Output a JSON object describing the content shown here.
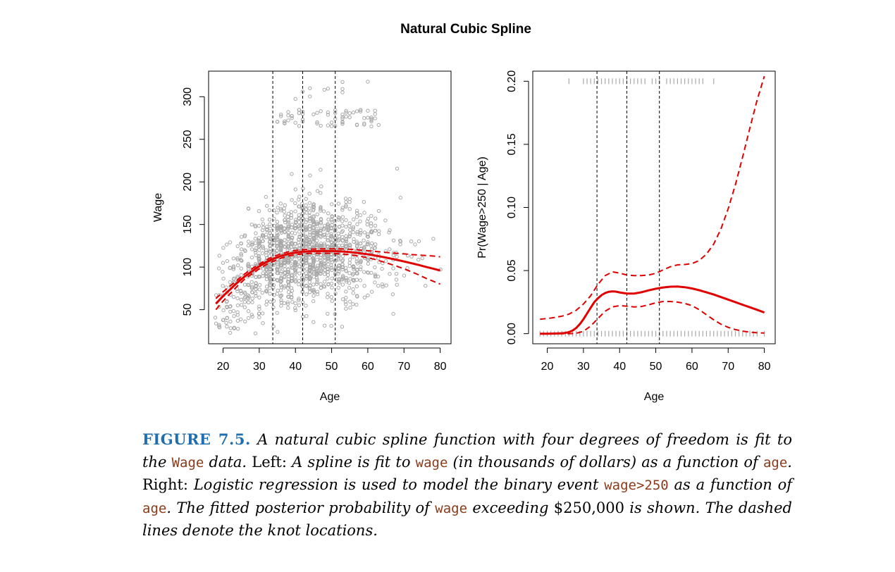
{
  "page_title": "Natural Cubic Spline",
  "chart_data": [
    {
      "type": "scatter",
      "panel": "left",
      "xlabel": "Age",
      "ylabel": "Wage",
      "xlim": [
        16,
        83
      ],
      "ylim": [
        10,
        330
      ],
      "xticks": [
        20,
        30,
        40,
        50,
        60,
        70,
        80
      ],
      "yticks": [
        50,
        100,
        150,
        200,
        250,
        300
      ],
      "knots": [
        33.75,
        42,
        51
      ],
      "fit": {
        "x": [
          18,
          20,
          22,
          24,
          26,
          28,
          30,
          32,
          34,
          36,
          38,
          40,
          42,
          44,
          46,
          48,
          50,
          52,
          54,
          56,
          58,
          60,
          62,
          64,
          66,
          68,
          70,
          72,
          74,
          76,
          78,
          80
        ],
        "y": [
          57,
          66,
          74,
          82,
          89,
          95,
          101,
          106,
          110,
          113,
          115.5,
          117,
          118,
          118.5,
          118.7,
          118.8,
          118.8,
          118.5,
          118,
          117.2,
          116.2,
          115,
          113.6,
          112,
          110.3,
          108.5,
          106.6,
          104.6,
          102.5,
          100.3,
          98.2,
          96
        ]
      },
      "upper": {
        "x": [
          18,
          20,
          22,
          24,
          26,
          28,
          30,
          32,
          34,
          36,
          38,
          40,
          42,
          44,
          46,
          48,
          50,
          52,
          54,
          56,
          58,
          60,
          62,
          64,
          66,
          68,
          70,
          72,
          74,
          76,
          78,
          80
        ],
        "y": [
          63,
          71,
          78,
          85,
          92,
          98,
          103.5,
          108.5,
          112.5,
          115.5,
          118,
          119.5,
          120.5,
          121,
          121.3,
          121.4,
          121.5,
          121.4,
          121.2,
          120.7,
          120,
          119.2,
          118.4,
          117.6,
          116.9,
          116.2,
          115.5,
          114.8,
          114.2,
          113.6,
          113,
          112
        ]
      },
      "lower": {
        "x": [
          18,
          20,
          22,
          24,
          26,
          28,
          30,
          32,
          34,
          36,
          38,
          40,
          42,
          44,
          46,
          48,
          50,
          52,
          54,
          56,
          58,
          60,
          62,
          64,
          66,
          68,
          70,
          72,
          74,
          76,
          78,
          80
        ],
        "y": [
          50,
          60,
          69,
          78,
          86,
          92,
          98,
          103,
          107,
          110.5,
          113,
          114.5,
          115.5,
          116,
          116.2,
          116.2,
          116.1,
          115.7,
          115,
          114,
          112.6,
          111,
          109,
          106.5,
          103.8,
          101,
          98,
          94.5,
          91,
          87,
          83.5,
          80
        ]
      }
    },
    {
      "type": "line",
      "panel": "right",
      "xlabel": "Age",
      "ylabel": "Pr(Wage>250 | Age)",
      "xlim": [
        16,
        83
      ],
      "ylim": [
        -0.008,
        0.208
      ],
      "xticks": [
        20,
        30,
        40,
        50,
        60,
        70,
        80
      ],
      "yticks": [
        "0.00",
        "0.05",
        "0.10",
        "0.15",
        "0.20"
      ],
      "knots": [
        33.75,
        42,
        51
      ],
      "fit": {
        "x": [
          18,
          20,
          22,
          24,
          25,
          26,
          27,
          28,
          29,
          30,
          31,
          32,
          33,
          34,
          35,
          36,
          37,
          38,
          39,
          40,
          42,
          44,
          46,
          48,
          50,
          52,
          54,
          56,
          58,
          60,
          62,
          64,
          66,
          68,
          70,
          72,
          74,
          76,
          78,
          80
        ],
        "y": [
          0.0,
          0.0,
          0.0001,
          0.0003,
          0.0006,
          0.0012,
          0.0025,
          0.0045,
          0.0075,
          0.0115,
          0.016,
          0.0205,
          0.025,
          0.028,
          0.0305,
          0.0322,
          0.0332,
          0.0335,
          0.0333,
          0.0327,
          0.0318,
          0.0318,
          0.0328,
          0.0343,
          0.0356,
          0.0366,
          0.0372,
          0.0373,
          0.0368,
          0.0358,
          0.0344,
          0.0328,
          0.031,
          0.029,
          0.027,
          0.025,
          0.0229,
          0.0209,
          0.0189,
          0.0168
        ]
      },
      "upper": {
        "x": [
          18,
          20,
          22,
          24,
          26,
          28,
          30,
          32,
          34,
          36,
          38,
          40,
          42,
          44,
          46,
          48,
          50,
          52,
          54,
          56,
          58,
          60,
          62,
          64,
          66,
          68,
          70,
          72,
          74,
          76,
          78,
          80
        ],
        "y": [
          0.0115,
          0.012,
          0.0128,
          0.0138,
          0.0155,
          0.0185,
          0.0235,
          0.03,
          0.039,
          0.046,
          0.049,
          0.048,
          0.0465,
          0.046,
          0.046,
          0.0465,
          0.0478,
          0.0505,
          0.053,
          0.0545,
          0.0548,
          0.0555,
          0.058,
          0.063,
          0.071,
          0.083,
          0.099,
          0.118,
          0.14,
          0.163,
          0.185,
          0.204
        ]
      },
      "lower": {
        "x": [
          18,
          20,
          22,
          24,
          26,
          28,
          30,
          32,
          34,
          36,
          38,
          40,
          42,
          44,
          46,
          48,
          50,
          52,
          54,
          56,
          58,
          60,
          62,
          64,
          66,
          68,
          70,
          72,
          74,
          76,
          78,
          80
        ],
        "y": [
          0.0,
          0.0,
          0.0,
          0.0,
          0.0,
          0.0003,
          0.0018,
          0.006,
          0.012,
          0.0178,
          0.0212,
          0.0222,
          0.0218,
          0.0212,
          0.0215,
          0.0228,
          0.0245,
          0.0255,
          0.0255,
          0.025,
          0.024,
          0.0222,
          0.019,
          0.015,
          0.011,
          0.0075,
          0.005,
          0.0032,
          0.002,
          0.0012,
          0.0007,
          0.0005
        ]
      },
      "rug_top": [
        26,
        30,
        31,
        32,
        33,
        34,
        35,
        36,
        37,
        38,
        39,
        40,
        41,
        42,
        43,
        44,
        45,
        46,
        47,
        49,
        50,
        51,
        53,
        54,
        55,
        56,
        57,
        58,
        59,
        60,
        61,
        62,
        63,
        66
      ],
      "rug_bottom": [
        18,
        19,
        20,
        21,
        22,
        23,
        24,
        25,
        26,
        27,
        28,
        29,
        30,
        31,
        32,
        33,
        34,
        35,
        36,
        37,
        38,
        39,
        40,
        41,
        42,
        43,
        44,
        45,
        46,
        47,
        48,
        49,
        50,
        51,
        52,
        53,
        54,
        55,
        56,
        57,
        58,
        59,
        60,
        61,
        62,
        63,
        64,
        65,
        66,
        67,
        68,
        69,
        70,
        71,
        72,
        73,
        74,
        75,
        76,
        77,
        78,
        80
      ]
    }
  ],
  "colors": {
    "fit": "#e00000",
    "points": "#a8a8a8",
    "figure_label": "#1f6fb0",
    "code": "#8b3a1a"
  },
  "caption": {
    "label": "FIGURE 7.5.",
    "s1": "A natural cubic spline function with four degrees of freedom is fit to the",
    "code_wage1": "Wage",
    "s2": "data.",
    "left_word": "Left:",
    "s3": "A spline is fit to",
    "code_wage2": "wage",
    "s4": "(in thousands of dollars) as a function of",
    "code_age1": "age",
    "s5": ".",
    "right_word": "Right:",
    "s6": "Logistic regression is used to model the binary event",
    "code_event": "wage>250",
    "s7": "as a function of",
    "code_age2": "age",
    "s8": ". The fitted posterior probability of",
    "code_wage3": "wage",
    "s9": "exceeding",
    "amount": "$250,000",
    "s10": "is shown. The dashed lines denote the knot locations."
  }
}
